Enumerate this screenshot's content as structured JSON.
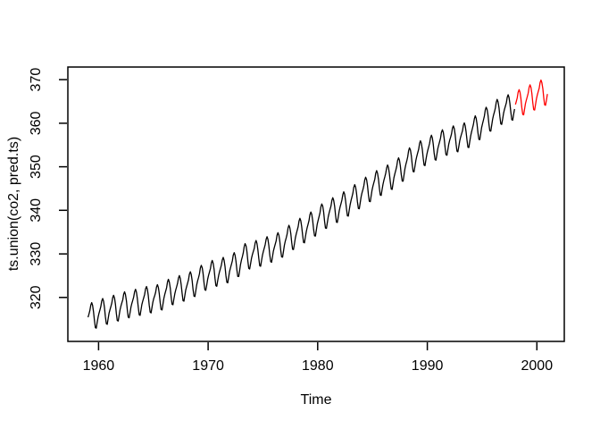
{
  "page": {
    "background": "#ffffff"
  },
  "chart_data": {
    "type": "line",
    "title": "",
    "xlabel": "Time",
    "ylabel": "ts.union(co2, pred.ts)",
    "xlim": [
      1957.2,
      2002.5
    ],
    "ylim": [
      309.9,
      372.9
    ],
    "x_ticks": [
      1960,
      1970,
      1980,
      1990,
      2000
    ],
    "y_ticks": [
      320,
      330,
      340,
      350,
      360,
      370
    ],
    "grid": false,
    "legend_position": "none",
    "frame_color": "#000000",
    "frequency": 12,
    "seasonal_pattern": [
      -0.1,
      0.55,
      1.25,
      2.45,
      2.95,
      2.25,
      0.75,
      -1.4,
      -3.1,
      -3.3,
      -2.1,
      -0.9
    ],
    "series": [
      {
        "name": "co2",
        "color": "#000000",
        "start_year": 1959,
        "n_years": 39,
        "annual_means": [
          315.97,
          316.91,
          317.64,
          318.45,
          318.99,
          319.62,
          320.04,
          321.37,
          322.18,
          323.05,
          324.62,
          325.68,
          326.32,
          327.46,
          329.68,
          330.19,
          331.12,
          332.03,
          333.84,
          335.41,
          336.84,
          338.76,
          340.12,
          341.48,
          343.15,
          344.87,
          346.35,
          347.61,
          349.31,
          351.69,
          353.2,
          354.45,
          355.7,
          356.54,
          357.21,
          358.96,
          360.97,
          362.74,
          363.71
        ]
      },
      {
        "name": "pred.ts",
        "color": "#ff0000",
        "start_year": 1998,
        "n_years": 3,
        "annual_means": [
          364.9,
          366.0,
          367.1
        ]
      }
    ]
  }
}
